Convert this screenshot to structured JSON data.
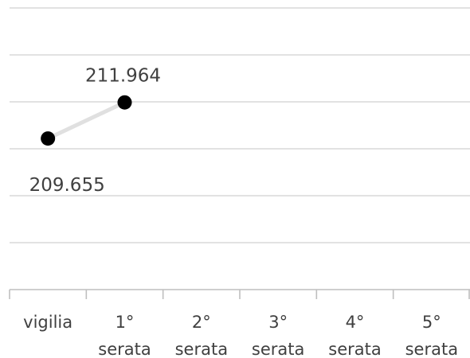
{
  "chart_data": {
    "type": "line",
    "title": "",
    "xlabel": "",
    "ylabel": "",
    "categories": [
      [
        "vigilia"
      ],
      [
        "1°",
        "serata"
      ],
      [
        "2°",
        "serata"
      ],
      [
        "3°",
        "serata"
      ],
      [
        "4°",
        "serata"
      ],
      [
        "5°",
        "serata"
      ]
    ],
    "series": [
      {
        "values": [
          209655,
          211964,
          null,
          null,
          null,
          null
        ],
        "data_labels": [
          "209.655",
          "211.964"
        ],
        "line_color": "#e0e0e0",
        "marker_color": "#000000"
      }
    ],
    "ylim": [
      200000,
      218000
    ],
    "y_gridline_step": 3000,
    "grid": true,
    "y_axis_labels_shown": false,
    "legend": "none",
    "colors": {
      "gridline": "#d9d9d9",
      "axis": "#bfbfbf",
      "text": "#404040"
    }
  }
}
